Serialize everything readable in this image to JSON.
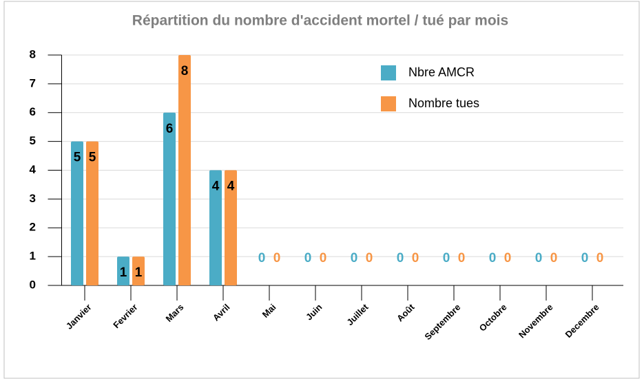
{
  "chart_data": {
    "type": "bar",
    "title": "Répartition du nombre d'accident mortel / tué par mois",
    "categories": [
      "Janvier",
      "Fevrier",
      "Mars",
      "Avril",
      "Mai",
      "Juin",
      "Juillet",
      "Août",
      "Septembre",
      "Octobre",
      "Novembre",
      "Decembre"
    ],
    "series": [
      {
        "name": "Nbre AMCR",
        "color": "#4bacc6",
        "values": [
          5,
          1,
          6,
          4,
          0,
          0,
          0,
          0,
          0,
          0,
          0,
          0
        ]
      },
      {
        "name": "Nombre tues",
        "color": "#f79646",
        "values": [
          5,
          1,
          8,
          4,
          0,
          0,
          0,
          0,
          0,
          0,
          0,
          0
        ]
      }
    ],
    "ylim": [
      0,
      8
    ],
    "yticks": [
      0,
      1,
      2,
      3,
      4,
      5,
      6,
      7,
      8
    ],
    "grid": true,
    "legend": "upper right"
  }
}
